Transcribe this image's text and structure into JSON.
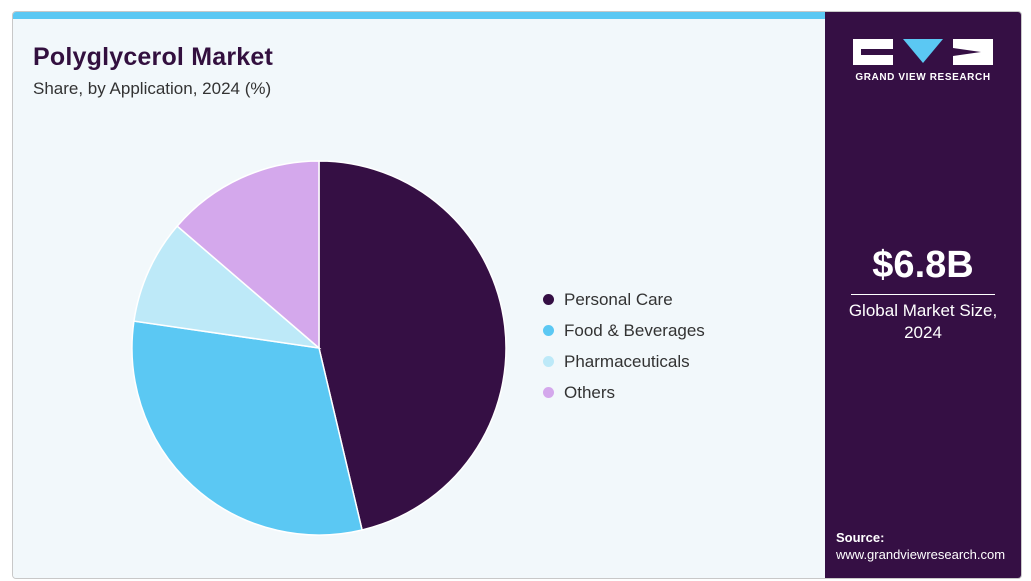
{
  "header": {
    "title": "Polyglycerol Market",
    "subtitle": "Share, by Application, 2024 (%)"
  },
  "chart_data": {
    "type": "pie",
    "categories": [
      "Personal Care",
      "Food & Beverages",
      "Pharmaceuticals",
      "Others"
    ],
    "values": [
      46.3,
      31.0,
      9.0,
      13.7
    ],
    "colors": [
      "#350f44",
      "#5bc8f3",
      "#bde9f8",
      "#d4a8ec"
    ],
    "legend_position": "right"
  },
  "sidebar": {
    "logo_text": "GRAND VIEW RESEARCH",
    "market_value": "$6.8B",
    "market_label": "Global Market Size, 2024",
    "source_label": "Source:",
    "source_url": "www.grandviewresearch.com"
  },
  "colors": {
    "brand_dark": "#350f44",
    "accent": "#5bc8f3",
    "background": "#f2f8fb"
  }
}
